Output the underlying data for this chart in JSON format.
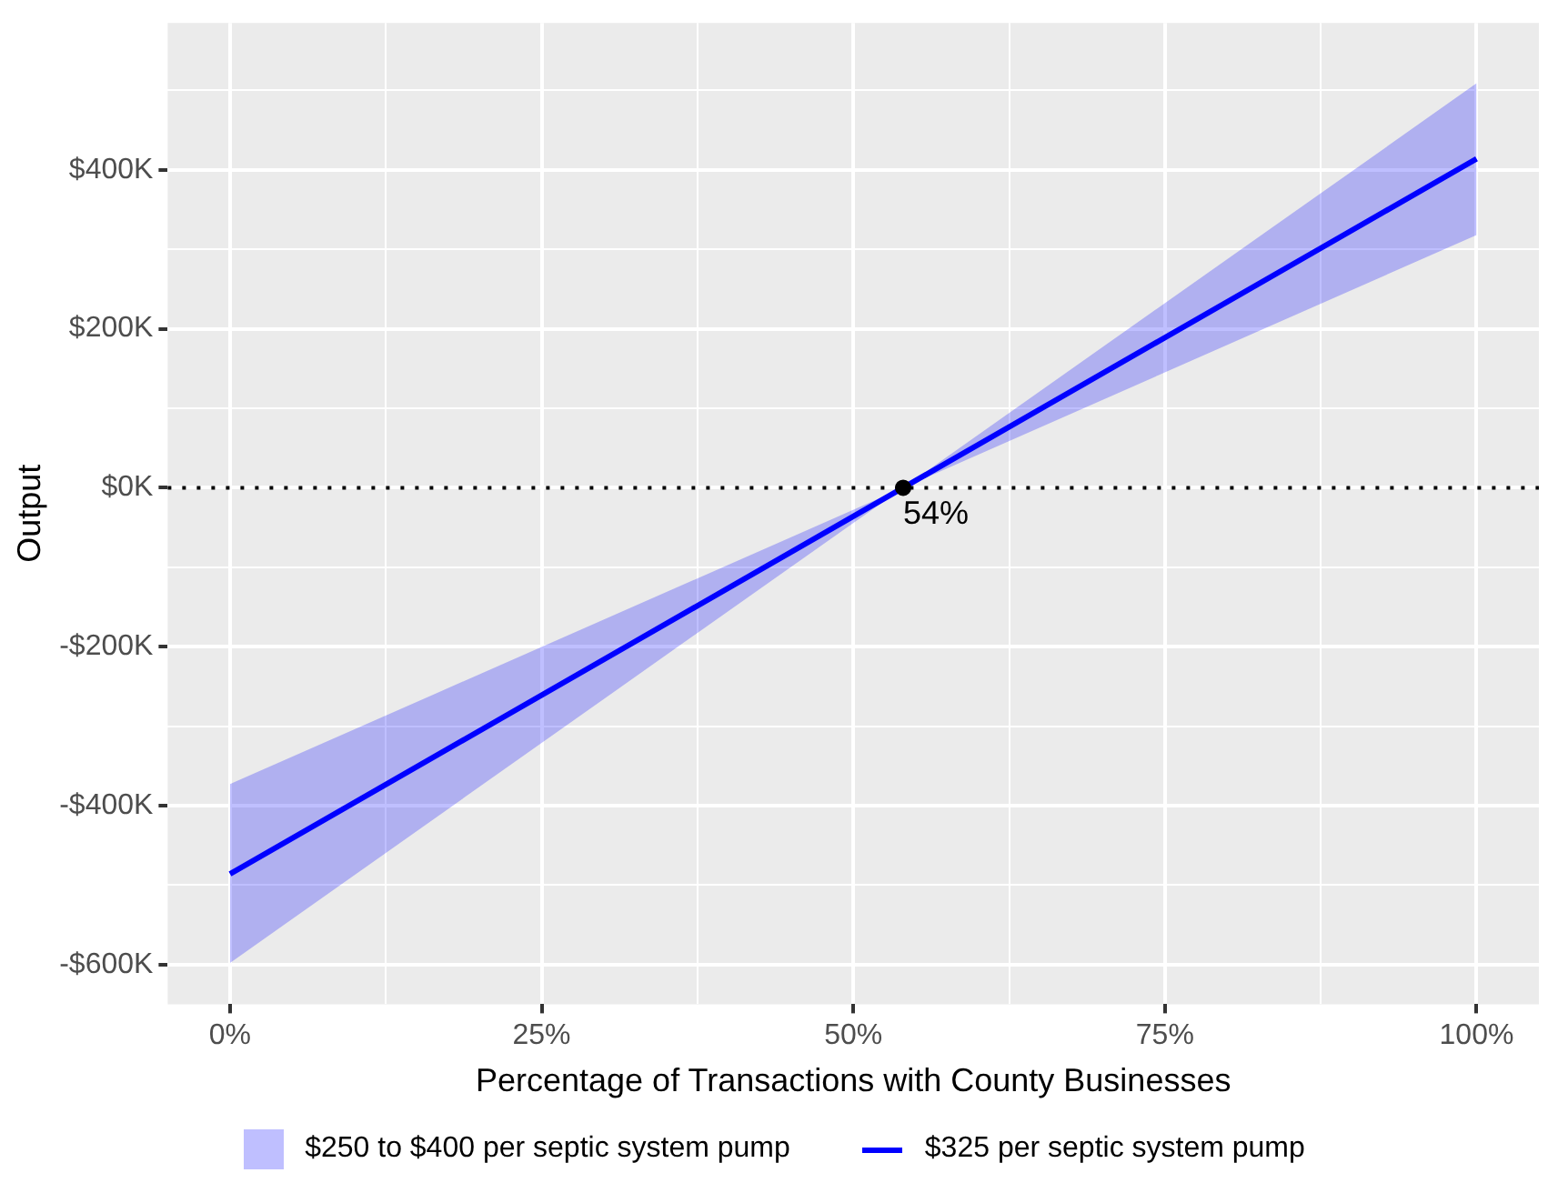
{
  "chart_data": {
    "type": "line",
    "xlabel": "Percentage of Transactions with County Businesses",
    "ylabel": "Output",
    "x": [
      0,
      54,
      100
    ],
    "series": [
      {
        "name": "$325 per septic system pump",
        "type": "line",
        "color": "#0000ff",
        "values": [
          -486,
          0,
          414
        ],
        "lower": [
          -598,
          0,
          318
        ],
        "upper": [
          -373,
          0,
          509
        ]
      },
      {
        "type": "scatter",
        "color": "#000000",
        "x": [
          54
        ],
        "values": [
          0
        ]
      }
    ],
    "xlim": [
      -5,
      105
    ],
    "xticks": [
      {
        "value": 0,
        "label": "0%"
      },
      {
        "value": 12.5,
        "label": null
      },
      {
        "value": 25,
        "label": "25%"
      },
      {
        "value": 37.5,
        "label": null
      },
      {
        "value": 50,
        "label": "50%"
      },
      {
        "value": 62.5,
        "label": null
      },
      {
        "value": 75,
        "label": "75%"
      },
      {
        "value": 87.5,
        "label": null
      },
      {
        "value": 100,
        "label": "100%"
      }
    ],
    "ylim": [
      -650,
      585
    ],
    "yticks": [
      {
        "value": -600,
        "label": "-$600K"
      },
      {
        "value": -500,
        "label": null
      },
      {
        "value": -400,
        "label": "-$400K"
      },
      {
        "value": -300,
        "label": null
      },
      {
        "value": -200,
        "label": "-$200K"
      },
      {
        "value": -100,
        "label": null
      },
      {
        "value": 0,
        "label": "$0K"
      },
      {
        "value": 100,
        "label": null
      },
      {
        "value": 200,
        "label": "$200K"
      },
      {
        "value": 300,
        "label": null
      },
      {
        "value": 400,
        "label": "$400K"
      },
      {
        "value": 500,
        "label": null
      }
    ],
    "ref_lines": [
      {
        "axis": "y",
        "value": 0,
        "line_style": "dotted",
        "color": "#000000"
      }
    ],
    "annotations": [
      {
        "text": "54%",
        "x": 54,
        "y": 0
      },
      "$250 to $400 per septic system pump"
    ],
    "grid": true,
    "legend": "bottom",
    "line_style": "solid"
  }
}
